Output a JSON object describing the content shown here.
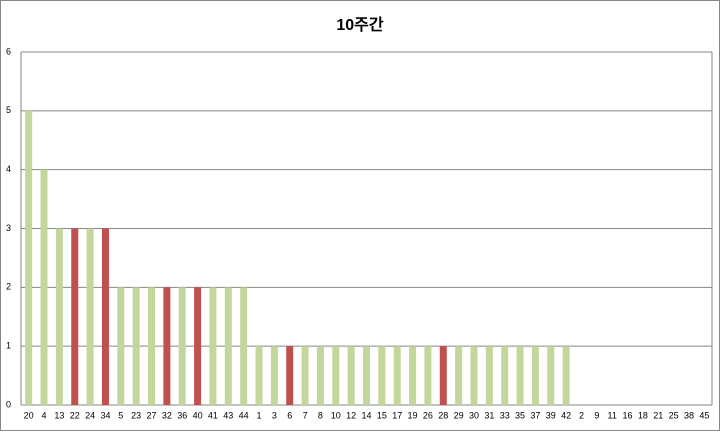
{
  "chart_data": {
    "type": "bar",
    "title": "10주간",
    "categories": [
      "20",
      "4",
      "13",
      "22",
      "24",
      "34",
      "5",
      "23",
      "27",
      "32",
      "36",
      "40",
      "41",
      "43",
      "44",
      "1",
      "3",
      "6",
      "7",
      "8",
      "10",
      "12",
      "14",
      "15",
      "17",
      "19",
      "26",
      "28",
      "29",
      "30",
      "31",
      "33",
      "35",
      "37",
      "39",
      "42",
      "2",
      "9",
      "11",
      "16",
      "18",
      "21",
      "25",
      "38",
      "45"
    ],
    "values": [
      5,
      4,
      3,
      3,
      3,
      3,
      2,
      2,
      2,
      2,
      2,
      2,
      2,
      2,
      2,
      1,
      1,
      1,
      1,
      1,
      1,
      1,
      1,
      1,
      1,
      1,
      1,
      1,
      1,
      1,
      1,
      1,
      1,
      1,
      1,
      1,
      0,
      0,
      0,
      0,
      0,
      0,
      0,
      0,
      0
    ],
    "colors": [
      "#c3d69b",
      "#c3d69b",
      "#c3d69b",
      "#c0504d",
      "#c3d69b",
      "#c0504d",
      "#c3d69b",
      "#c3d69b",
      "#c3d69b",
      "#c0504d",
      "#c3d69b",
      "#c0504d",
      "#c3d69b",
      "#c3d69b",
      "#c3d69b",
      "#c3d69b",
      "#c3d69b",
      "#c0504d",
      "#c3d69b",
      "#c3d69b",
      "#c3d69b",
      "#c3d69b",
      "#c3d69b",
      "#c3d69b",
      "#c3d69b",
      "#c3d69b",
      "#c3d69b",
      "#c0504d",
      "#c3d69b",
      "#c3d69b",
      "#c3d69b",
      "#c3d69b",
      "#c3d69b",
      "#c3d69b",
      "#c3d69b",
      "#c3d69b",
      "#c3d69b",
      "#c3d69b",
      "#c3d69b",
      "#c3d69b",
      "#c3d69b",
      "#c3d69b",
      "#c3d69b",
      "#c3d69b",
      "#c3d69b"
    ],
    "ylim": [
      0,
      6
    ],
    "yticks": [
      0,
      1,
      2,
      3,
      4,
      5,
      6
    ],
    "grid": true
  }
}
